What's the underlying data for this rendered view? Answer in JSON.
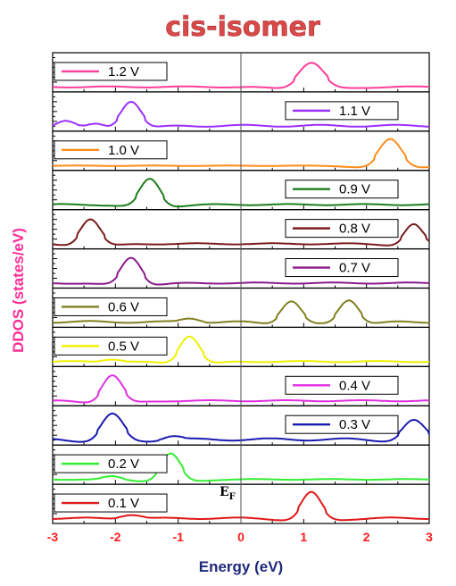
{
  "chart_data": {
    "type": "line",
    "title": "cis-isomer",
    "xlabel": "Energy (eV)",
    "ylabel": "DDOS (states/eV)",
    "xlim": [
      -3,
      3
    ],
    "xticks": [
      "-3",
      "-2",
      "-1",
      "0",
      "1",
      "2",
      "3"
    ],
    "fermi_label": "E",
    "fermi_subscript": "F",
    "fermi_x": 0,
    "legend_placement": "each panel, left or right",
    "series": [
      {
        "name": "1.2 V",
        "color": "#ff3d9a",
        "legend": "left",
        "peaks": [
          [
            1.12,
            0.28,
            0.78
          ]
        ],
        "baseline": 0.06
      },
      {
        "name": "1.1 V",
        "color": "#9b30ff",
        "legend": "right",
        "peaks": [
          [
            -1.75,
            0.22,
            0.8
          ],
          [
            -2.8,
            0.18,
            0.18
          ],
          [
            -2.3,
            0.15,
            0.08
          ]
        ],
        "baseline": 0.1
      },
      {
        "name": "1.0 V",
        "color": "#ff8c1a",
        "legend": "left",
        "peaks": [
          [
            2.38,
            0.25,
            0.85
          ]
        ],
        "baseline": 0.02
      },
      {
        "name": "0.9 V",
        "color": "#1e7d1e",
        "legend": "right",
        "peaks": [
          [
            -1.45,
            0.22,
            0.82
          ]
        ],
        "baseline": 0.06
      },
      {
        "name": "0.8 V",
        "color": "#7a1c1c",
        "legend": "right",
        "peaks": [
          [
            -2.4,
            0.22,
            0.8
          ],
          [
            2.75,
            0.2,
            0.62
          ]
        ],
        "baseline": 0.06
      },
      {
        "name": "0.7 V",
        "color": "#8b1a8b",
        "legend": "right",
        "peaks": [
          [
            -1.75,
            0.22,
            0.82
          ]
        ],
        "baseline": 0.06
      },
      {
        "name": "0.6 V",
        "color": "#808020",
        "legend": "left",
        "peaks": [
          [
            0.8,
            0.22,
            0.68
          ],
          [
            1.72,
            0.22,
            0.72
          ],
          [
            -0.8,
            0.2,
            0.12
          ]
        ],
        "baseline": 0.1
      },
      {
        "name": "0.5 V",
        "color": "#f0f000",
        "legend": "left",
        "peaks": [
          [
            -0.82,
            0.22,
            0.82
          ],
          [
            -2.05,
            0.2,
            0.08
          ]
        ],
        "baseline": 0.06
      },
      {
        "name": "0.4 V",
        "color": "#e030e0",
        "legend": "right",
        "peaks": [
          [
            -2.05,
            0.22,
            0.82
          ]
        ],
        "baseline": 0.06
      },
      {
        "name": "0.3 V",
        "color": "#1a1ab0",
        "legend": "right",
        "peaks": [
          [
            -2.05,
            0.24,
            0.8
          ],
          [
            2.75,
            0.24,
            0.6
          ],
          [
            -1.1,
            0.2,
            0.12
          ]
        ],
        "baseline": 0.12
      },
      {
        "name": "0.2 V",
        "color": "#33ee33",
        "legend": "left",
        "peaks": [
          [
            -1.12,
            0.22,
            0.82
          ],
          [
            -2.05,
            0.2,
            0.1
          ]
        ],
        "baseline": 0.04
      },
      {
        "name": "0.1 V",
        "color": "#e01818",
        "legend": "left",
        "peaks": [
          [
            1.12,
            0.22,
            0.82
          ],
          [
            -1.75,
            0.22,
            0.12
          ]
        ],
        "baseline": 0.08
      }
    ]
  }
}
